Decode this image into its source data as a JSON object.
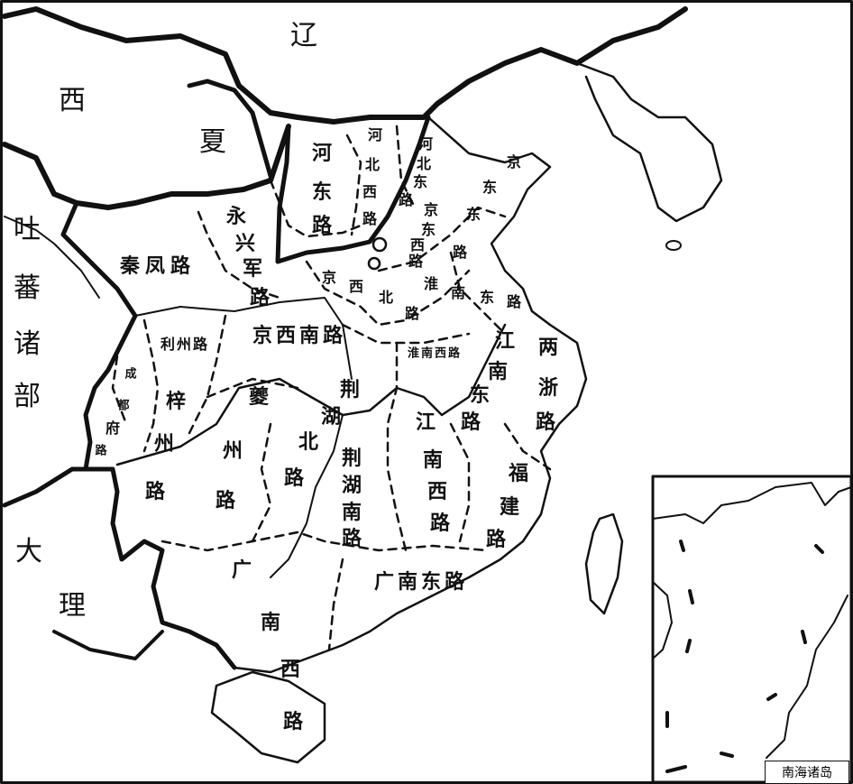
{
  "colors": {
    "border": "#111111",
    "background": "#ffffff"
  },
  "neighbors": {
    "liao": [
      "辽"
    ],
    "xixia": [
      "西",
      "夏"
    ],
    "tubo": [
      "吐",
      "蕃",
      "诸",
      "部"
    ],
    "dali": [
      "大",
      "理"
    ]
  },
  "circuits": {
    "hedong": [
      "河",
      "东",
      "路"
    ],
    "hebei_xi": [
      "河",
      "北",
      "西",
      "路"
    ],
    "hebei_dong": [
      "河",
      "北",
      "东",
      "路"
    ],
    "jingdong_xi": [
      "京",
      "东",
      "西",
      "路"
    ],
    "jingdong_dong": [
      "京",
      "东",
      "东",
      "路"
    ],
    "yongxingjun": [
      "永",
      "兴",
      "军",
      "路"
    ],
    "qinfeng": "秦凤路",
    "jingxi_bei": [
      "京",
      "西",
      "北",
      "路"
    ],
    "huainan_dong": [
      "淮",
      "南",
      "东",
      "路"
    ],
    "jingxi_nan": "京西南路",
    "huainan_xi": "淮南西路",
    "lizhou": "利州路",
    "chengdufu": [
      "成",
      "都",
      "府",
      "路"
    ],
    "zizhou": [
      "梓",
      "州",
      "路"
    ],
    "kuizhou": [
      "夔",
      "州",
      "路"
    ],
    "jinghu_bei": [
      "荆",
      "湖",
      "北",
      "路"
    ],
    "jinghu_nan": [
      "荆",
      "湖",
      "南",
      "路"
    ],
    "jiangnan_dong": [
      "江",
      "南",
      "东",
      "路"
    ],
    "jiangnan_xi": [
      "江",
      "南",
      "西",
      "路"
    ],
    "liangzhe": [
      "两",
      "浙",
      "路"
    ],
    "fujian": [
      "福",
      "建",
      "路"
    ],
    "guangnan_dong": "广南东路",
    "guangnan_xi": [
      "广",
      "南",
      "西",
      "路"
    ]
  },
  "inset": {
    "caption": "南海诸岛"
  }
}
